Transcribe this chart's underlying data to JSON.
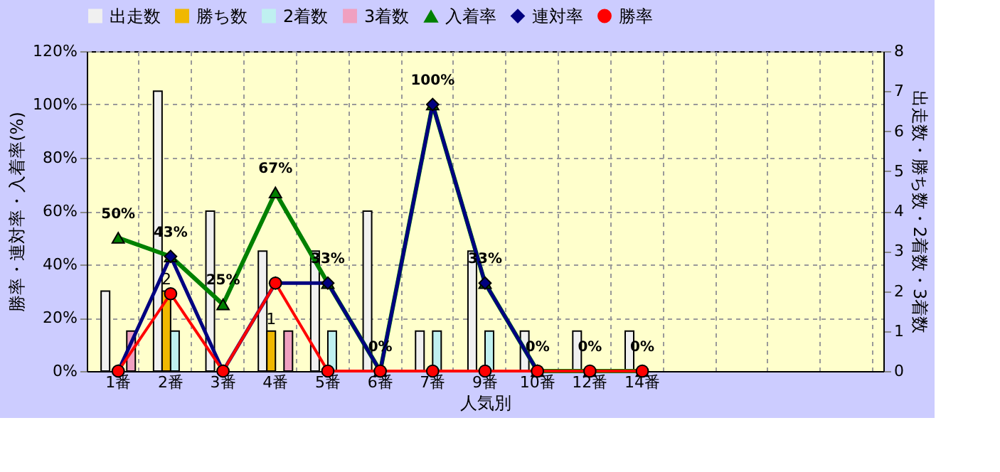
{
  "chart_data": {
    "type": "bar",
    "xlabel": "人気別",
    "ylabel": "勝率・連対率・入着率(%)",
    "y2label": "出走数・勝ち数・2着数・3着数",
    "categories": [
      "1番",
      "2番",
      "3番",
      "4番",
      "5番",
      "6番",
      "7番",
      "9番",
      "10番",
      "12番",
      "14番",
      null,
      null,
      null,
      null
    ],
    "series": [
      {
        "name": "出走数",
        "axis": "y2",
        "color": "#f0f0f0",
        "values": [
          2,
          7,
          4,
          3,
          3,
          4,
          1,
          3,
          1,
          1,
          1,
          null,
          null,
          null,
          null
        ]
      },
      {
        "name": "勝ち数",
        "axis": "y2",
        "color": "#f0b800",
        "values": [
          null,
          2,
          null,
          1,
          null,
          null,
          null,
          null,
          null,
          null,
          null,
          null,
          null,
          null,
          null
        ],
        "value_labels": [
          null,
          "2",
          null,
          "1",
          null,
          null,
          null,
          null,
          null,
          null,
          null,
          null,
          null,
          null,
          null
        ]
      },
      {
        "name": "2着数",
        "axis": "y2",
        "color": "#bff0f0",
        "values": [
          null,
          1,
          null,
          null,
          1,
          null,
          1,
          1,
          null,
          null,
          null,
          null,
          null,
          null,
          null
        ]
      },
      {
        "name": "3着数",
        "axis": "y2",
        "color": "#f0a0c0",
        "values": [
          1,
          null,
          null,
          1,
          null,
          null,
          null,
          null,
          null,
          null,
          null,
          null,
          null,
          null,
          null
        ]
      },
      {
        "name": "入着率",
        "type": "line",
        "color": "#008000",
        "marker": "triangle",
        "values": [
          50,
          43,
          25,
          67,
          33,
          0,
          100,
          33,
          0,
          0,
          0,
          null,
          null,
          null,
          null
        ],
        "value_labels": [
          "50%",
          "43%",
          "25%",
          "67%",
          "33%",
          "0%",
          "100%",
          "33%",
          "0%",
          "0%",
          "0%",
          null,
          null,
          null,
          null
        ]
      },
      {
        "name": "連対率",
        "type": "line",
        "color": "#000080",
        "marker": "diamond",
        "values": [
          0,
          43,
          0,
          33,
          33,
          0,
          100,
          33,
          0,
          null,
          null,
          null,
          null,
          null,
          null
        ]
      },
      {
        "name": "勝率",
        "type": "line",
        "color": "#ff0000",
        "marker": "circle",
        "values": [
          0,
          29,
          0,
          33,
          0,
          0,
          0,
          0,
          0,
          0,
          0,
          null,
          null,
          null,
          null
        ]
      }
    ],
    "ylim": [
      0,
      120
    ],
    "yticks": [
      {
        "value": 0,
        "label": "0%"
      },
      {
        "value": 20,
        "label": "20%"
      },
      {
        "value": 40,
        "label": "40%"
      },
      {
        "value": 60,
        "label": "60%"
      },
      {
        "value": 80,
        "label": "80%"
      },
      {
        "value": 100,
        "label": "100%"
      },
      {
        "value": 120,
        "label": "120%"
      }
    ],
    "y2lim": [
      0,
      8
    ],
    "y2ticks": [
      0,
      1,
      2,
      3,
      4,
      5,
      6,
      7,
      8
    ],
    "grid": true,
    "legend": "top"
  }
}
